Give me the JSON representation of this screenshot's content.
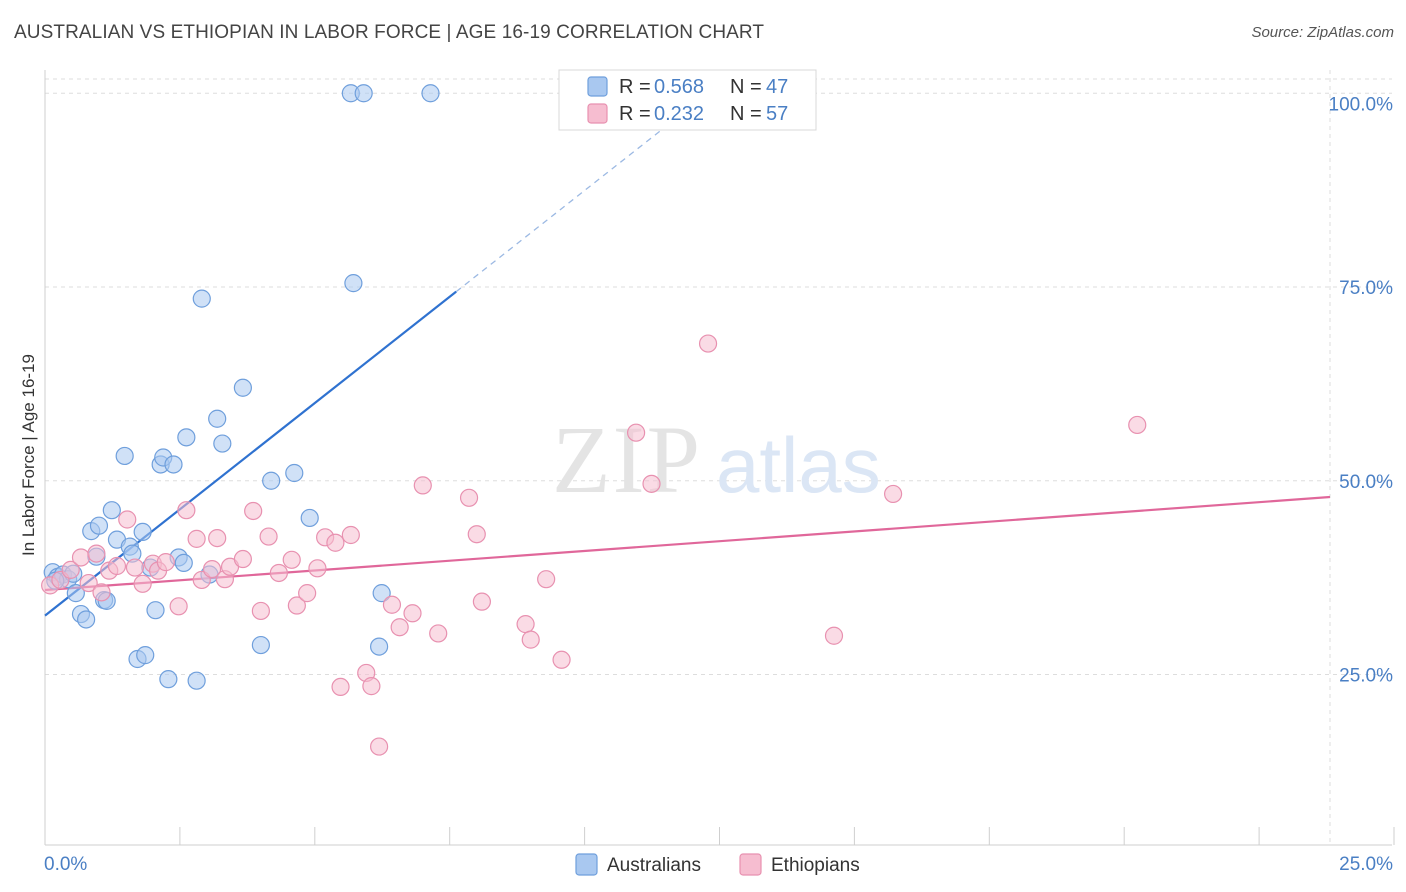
{
  "title": "AUSTRALIAN VS ETHIOPIAN IN LABOR FORCE | AGE 16-19 CORRELATION CHART",
  "source": "Source: ZipAtlas.com",
  "watermark": {
    "zip": "ZIP",
    "atlas": "atlas"
  },
  "colors": {
    "blue_fill": "#a9c8f0",
    "blue_stroke": "#6f9fdc",
    "blue_line": "#2f72d0",
    "pink_fill": "#f6bdd0",
    "pink_stroke": "#e891b0",
    "pink_line": "#e0679a",
    "label_blue": "#4a7fc4",
    "grid": "#dddddd"
  },
  "legend": {
    "r_label": "R =",
    "n_label": "N =",
    "rows": [
      {
        "series": "Australians",
        "r": "0.568",
        "n": "47"
      },
      {
        "series": "Ethiopians",
        "r": "0.232",
        "n": "57"
      }
    ]
  },
  "chart_data": {
    "type": "scatter",
    "title": "AUSTRALIAN VS ETHIOPIAN IN LABOR FORCE | AGE 16-19 CORRELATION CHART",
    "xlabel": "",
    "ylabel": "In Labor Force | Age 16-19",
    "xlim": [
      0,
      25
    ],
    "ylim": [
      3,
      103
    ],
    "x_tick_labels": [
      "0.0%",
      "25.0%"
    ],
    "y_ticks": [
      25,
      50,
      75,
      100
    ],
    "y_tick_labels": [
      "25.0%",
      "50.0%",
      "75.0%",
      "100.0%"
    ],
    "grid": true,
    "legend_position": "bottom",
    "series": [
      {
        "name": "Australians",
        "trend": {
          "x0": 0,
          "y0": 32.6,
          "x1": 8.0,
          "y1": 74.4,
          "dash_to_x": 12.6
        },
        "points": [
          [
            0.15,
            38.2
          ],
          [
            0.25,
            37.6
          ],
          [
            0.35,
            37.9
          ],
          [
            0.45,
            37.3
          ],
          [
            0.55,
            38.0
          ],
          [
            0.6,
            35.5
          ],
          [
            0.7,
            32.8
          ],
          [
            0.8,
            32.1
          ],
          [
            0.9,
            43.5
          ],
          [
            1.0,
            40.2
          ],
          [
            1.05,
            44.2
          ],
          [
            1.15,
            34.6
          ],
          [
            1.3,
            46.2
          ],
          [
            1.4,
            42.4
          ],
          [
            1.55,
            53.2
          ],
          [
            1.65,
            41.5
          ],
          [
            1.7,
            40.6
          ],
          [
            1.8,
            27.0
          ],
          [
            1.9,
            43.4
          ],
          [
            1.95,
            27.5
          ],
          [
            2.05,
            38.8
          ],
          [
            2.15,
            33.3
          ],
          [
            2.25,
            52.1
          ],
          [
            2.3,
            53.0
          ],
          [
            2.4,
            24.4
          ],
          [
            2.5,
            52.1
          ],
          [
            2.6,
            40.1
          ],
          [
            2.7,
            39.4
          ],
          [
            2.75,
            55.6
          ],
          [
            2.95,
            24.2
          ],
          [
            3.05,
            73.5
          ],
          [
            3.2,
            37.9
          ],
          [
            3.35,
            58.0
          ],
          [
            3.45,
            54.8
          ],
          [
            3.85,
            62.0
          ],
          [
            4.2,
            28.8
          ],
          [
            4.4,
            50.0
          ],
          [
            4.85,
            51.0
          ],
          [
            5.15,
            45.2
          ],
          [
            5.95,
            100.0
          ],
          [
            6.0,
            75.5
          ],
          [
            6.2,
            100.0
          ],
          [
            6.55,
            35.5
          ],
          [
            6.5,
            28.6
          ],
          [
            7.5,
            100.0
          ],
          [
            0.2,
            37.1
          ],
          [
            1.2,
            34.5
          ]
        ]
      },
      {
        "name": "Ethiopians",
        "trend": {
          "x0": 0,
          "y0": 35.9,
          "x1": 25,
          "y1": 47.9
        },
        "points": [
          [
            0.1,
            36.5
          ],
          [
            0.3,
            37.2
          ],
          [
            0.5,
            38.5
          ],
          [
            0.7,
            40.1
          ],
          [
            0.85,
            36.8
          ],
          [
            1.0,
            40.6
          ],
          [
            1.1,
            35.6
          ],
          [
            1.25,
            38.4
          ],
          [
            1.4,
            39.0
          ],
          [
            1.6,
            45.0
          ],
          [
            1.75,
            38.8
          ],
          [
            1.9,
            36.7
          ],
          [
            2.1,
            39.3
          ],
          [
            2.2,
            38.4
          ],
          [
            2.35,
            39.5
          ],
          [
            2.6,
            33.8
          ],
          [
            2.75,
            46.2
          ],
          [
            2.95,
            42.5
          ],
          [
            3.05,
            37.2
          ],
          [
            3.25,
            38.6
          ],
          [
            3.35,
            42.6
          ],
          [
            3.5,
            37.3
          ],
          [
            3.6,
            38.9
          ],
          [
            3.85,
            39.9
          ],
          [
            4.05,
            46.1
          ],
          [
            4.2,
            33.2
          ],
          [
            4.35,
            42.8
          ],
          [
            4.55,
            38.1
          ],
          [
            4.8,
            39.8
          ],
          [
            4.9,
            33.9
          ],
          [
            5.1,
            35.5
          ],
          [
            5.3,
            38.7
          ],
          [
            5.45,
            42.7
          ],
          [
            5.65,
            42.0
          ],
          [
            5.75,
            23.4
          ],
          [
            5.95,
            43.0
          ],
          [
            6.25,
            25.2
          ],
          [
            6.35,
            23.5
          ],
          [
            6.5,
            15.7
          ],
          [
            6.75,
            34.0
          ],
          [
            6.9,
            31.1
          ],
          [
            7.15,
            32.9
          ],
          [
            7.35,
            49.4
          ],
          [
            7.65,
            30.3
          ],
          [
            8.25,
            47.8
          ],
          [
            8.4,
            43.1
          ],
          [
            8.5,
            34.4
          ],
          [
            9.35,
            31.5
          ],
          [
            9.45,
            29.5
          ],
          [
            9.75,
            37.3
          ],
          [
            10.05,
            26.9
          ],
          [
            11.5,
            56.2
          ],
          [
            11.8,
            49.6
          ],
          [
            12.9,
            67.7
          ],
          [
            15.35,
            30.0
          ],
          [
            16.5,
            48.3
          ],
          [
            21.25,
            57.2
          ]
        ]
      }
    ]
  },
  "bottom_legend": {
    "items": [
      "Australians",
      "Ethiopians"
    ]
  }
}
